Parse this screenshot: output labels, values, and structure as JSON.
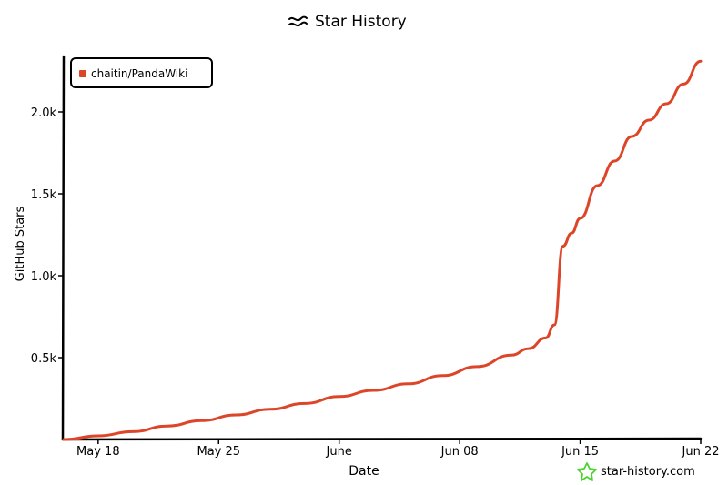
{
  "chart_data": {
    "type": "line",
    "title": "Star History",
    "xlabel": "Date",
    "ylabel": "GitHub Stars",
    "x_ticks": [
      "May 18",
      "May 25",
      "June",
      "Jun 08",
      "Jun 15",
      "Jun 22"
    ],
    "y_ticks": [
      "0.5k",
      "1.0k",
      "1.5k",
      "2.0k"
    ],
    "ylim": [
      0,
      2350
    ],
    "grid": false,
    "legend_position": "top-left",
    "series": [
      {
        "name": "chaitin/PandaWiki",
        "color": "#dd4528",
        "points": [
          [
            "2025-05-16",
            0
          ],
          [
            "2025-05-18",
            22
          ],
          [
            "2025-05-20",
            48
          ],
          [
            "2025-05-22",
            82
          ],
          [
            "2025-05-24",
            115
          ],
          [
            "2025-05-26",
            150
          ],
          [
            "2025-05-28",
            185
          ],
          [
            "2025-05-30",
            220
          ],
          [
            "2025-06-01",
            262
          ],
          [
            "2025-06-03",
            300
          ],
          [
            "2025-06-05",
            340
          ],
          [
            "2025-06-07",
            390
          ],
          [
            "2025-06-09",
            445
          ],
          [
            "2025-06-11",
            515
          ],
          [
            "2025-06-12",
            555
          ],
          [
            "2025-06-13",
            620
          ],
          [
            "2025-06-13T12:00",
            700
          ],
          [
            "2025-06-14",
            1180
          ],
          [
            "2025-06-14T12:00",
            1260
          ],
          [
            "2025-06-15",
            1350
          ],
          [
            "2025-06-16",
            1550
          ],
          [
            "2025-06-17",
            1700
          ],
          [
            "2025-06-18",
            1850
          ],
          [
            "2025-06-19",
            1950
          ],
          [
            "2025-06-20",
            2050
          ],
          [
            "2025-06-21",
            2170
          ],
          [
            "2025-06-22",
            2310
          ]
        ]
      }
    ]
  },
  "watermark": {
    "text": "star-history.com",
    "icon": "star-icon",
    "color": "#4bd32d"
  },
  "title_icon": "wave-icon"
}
